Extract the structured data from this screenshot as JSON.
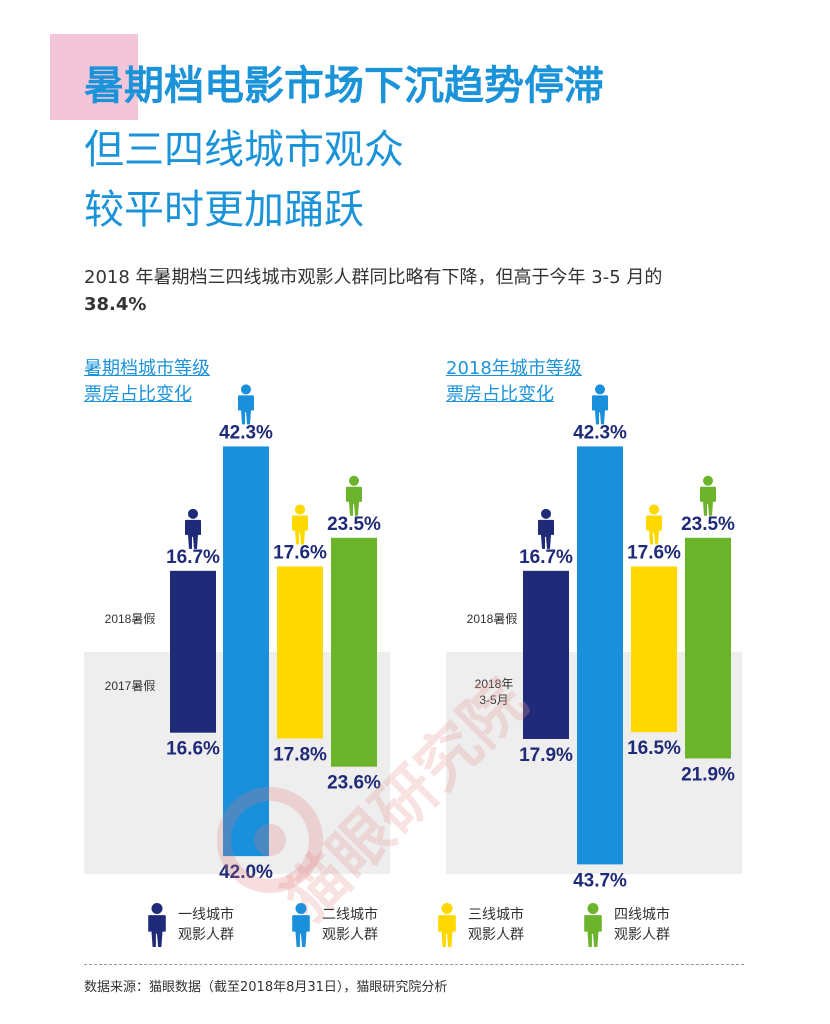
{
  "title": {
    "line1": "暑期档电影市场下沉趋势停滞",
    "line2": "但三四线城市观众",
    "line3": "较平时更加踊跃"
  },
  "subtitle": {
    "text": "2018 年暑期档三四线城市观影人群同比略有下降，但高于今年 3-5 月的 ",
    "highlight": "38.4%"
  },
  "colors": {
    "tier1": "#1f2a78",
    "tier2": "#1a8fdb",
    "tier3": "#ffd800",
    "tier4": "#6cb42c",
    "label": "#1f2a78",
    "accent": "#1a93d9"
  },
  "watermark": "猫眼研究院",
  "legend": [
    {
      "name": "一线城市观影人群",
      "line1": "一线城市",
      "line2": "观影人群",
      "color": "#1f2a78"
    },
    {
      "name": "二线城市观影人群",
      "line1": "二线城市",
      "line2": "观影人群",
      "color": "#1a8fdb"
    },
    {
      "name": "三线城市观影人群",
      "line1": "三线城市",
      "line2": "观影人群",
      "color": "#ffd800"
    },
    {
      "name": "四线城市观影人群",
      "line1": "四线城市",
      "line2": "观影人群",
      "color": "#6cb42c"
    }
  ],
  "source": "数据来源：猫眼数据（截至2018年8月31日），猫眼研究院分析",
  "chart_data": [
    {
      "type": "bar",
      "title_line1": "暑期档城市等级",
      "title_line2": "票房占比变化",
      "categories": [
        "一线城市观影人群",
        "二线城市观影人群",
        "三线城市观影人群",
        "四线城市观影人群"
      ],
      "series": [
        {
          "name": "2018暑假",
          "values": [
            16.7,
            42.3,
            17.6,
            23.5
          ],
          "labels": [
            "16.7%",
            "42.3%",
            "17.6%",
            "23.5%"
          ]
        },
        {
          "name": "2017暑假",
          "values": [
            16.6,
            42.0,
            17.8,
            23.6
          ],
          "labels": [
            "16.6%",
            "42.0%",
            "17.8%",
            "23.6%"
          ]
        }
      ]
    },
    {
      "type": "bar",
      "title_line1": "2018年城市等级",
      "title_line2": "票房占比变化",
      "categories": [
        "一线城市观影人群",
        "二线城市观影人群",
        "三线城市观影人群",
        "四线城市观影人群"
      ],
      "series": [
        {
          "name": "2018暑假",
          "values": [
            16.7,
            42.3,
            17.6,
            23.5
          ],
          "labels": [
            "16.7%",
            "42.3%",
            "17.6%",
            "23.5%"
          ]
        },
        {
          "name": "2018年 3-5月",
          "name_line1": "2018年",
          "name_line2": "3-5月",
          "values": [
            17.9,
            43.7,
            16.5,
            21.9
          ],
          "labels": [
            "17.9%",
            "43.7%",
            "16.5%",
            "21.9%"
          ]
        }
      ]
    }
  ]
}
